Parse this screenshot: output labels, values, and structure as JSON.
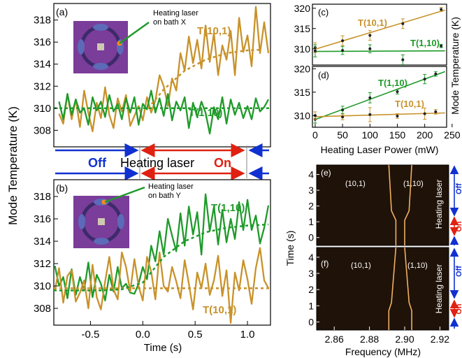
{
  "colors": {
    "mode_101": "#c8922a",
    "mode_110": "#1f9a2a",
    "off": "#1030d0",
    "on": "#e02010",
    "spectrum_bg": "#1f1208",
    "spectrum_line": "#f0b060",
    "bath_purple": "#7a3d9a"
  },
  "panel_a": {
    "label": "(a)",
    "annotation": "Heating laser on bath X",
    "annotation_lines": [
      "Heating laser",
      "on bath X"
    ],
    "series_101_label": "T(10,1)",
    "series_110_label": "T(1,10)",
    "yticks": [
      "308",
      "310",
      "312",
      "314",
      "316",
      "318"
    ]
  },
  "panel_b": {
    "label": "(b)",
    "annotation": "Heating laser on bath Y",
    "annotation_lines": [
      "Heating laser",
      "on bath Y"
    ],
    "series_110_label": "T(1,10)",
    "series_101_label": "T(10,1)",
    "yticks": [
      "308",
      "310",
      "312",
      "314",
      "316",
      "318"
    ]
  },
  "timeline": {
    "off_label": "Off",
    "heating_label": "Heating laser",
    "on_label": "On"
  },
  "left_axis": {
    "ylabel": "Mode Temperature (K)",
    "xlabel": "Time (s)",
    "xticks": [
      "-0.5",
      "0.0",
      "0.5",
      "1.0"
    ]
  },
  "panel_c": {
    "label": "(c)",
    "series_101_label": "T(10,1)",
    "series_110_label": "T(1,10)",
    "yticks": [
      "310",
      "315",
      "320"
    ]
  },
  "panel_d": {
    "label": "(d)",
    "series_110_label": "T(1,10)",
    "series_101_label": "T(10,1)",
    "yticks": [
      "310",
      "315",
      "320"
    ],
    "xticks": [
      "0",
      "50",
      "100",
      "150",
      "200",
      "250"
    ]
  },
  "right_top_axis": {
    "ylabel": "Mode Temperature (K)",
    "xlabel": "Heating Laser Power (mW)"
  },
  "panel_e": {
    "label": "(e)",
    "peak_left": "(10,1)",
    "peak_right": "(1,10)",
    "side_label": "Heating laser",
    "off_label": "Off",
    "on_label": "On",
    "yticks": [
      "0",
      "1",
      "2",
      "3",
      "4"
    ]
  },
  "panel_f": {
    "label": "(f)",
    "peak_left": "(10,1)",
    "peak_right": "(1,10)",
    "side_label": "Heating laser",
    "off_label": "Off",
    "on_label": "On",
    "yticks": [
      "0",
      "1",
      "2",
      "3",
      "4"
    ]
  },
  "right_bottom_axis": {
    "ylabel": "Time (s)",
    "xlabel": "Frequency (MHz)",
    "xticks": [
      "2.86",
      "2.88",
      "2.90",
      "2.92"
    ]
  },
  "chart_data": [
    {
      "id": "a",
      "type": "line",
      "xlim": [
        -0.85,
        1.22
      ],
      "ylim": [
        306.5,
        319.5
      ],
      "series": [
        {
          "name": "T(10,1)",
          "x": [
            -0.8,
            -0.76,
            -0.72,
            -0.68,
            -0.64,
            -0.6,
            -0.56,
            -0.52,
            -0.48,
            -0.44,
            -0.4,
            -0.36,
            -0.32,
            -0.28,
            -0.24,
            -0.2,
            -0.16,
            -0.12,
            -0.08,
            -0.04,
            0.0,
            0.04,
            0.08,
            0.12,
            0.16,
            0.2,
            0.24,
            0.28,
            0.32,
            0.36,
            0.4,
            0.44,
            0.48,
            0.52,
            0.56,
            0.6,
            0.64,
            0.68,
            0.72,
            0.76,
            0.8,
            0.84,
            0.88,
            0.92,
            0.96,
            1.0,
            1.04,
            1.08,
            1.12,
            1.16,
            1.2
          ],
          "values": [
            309.5,
            308.6,
            311.3,
            309.0,
            310.8,
            308.3,
            311.6,
            309.6,
            307.9,
            310.5,
            309.1,
            311.9,
            309.4,
            308.2,
            310.9,
            309.7,
            311.2,
            308.4,
            309.3,
            310.2,
            308.9,
            311.0,
            309.6,
            310.7,
            313.0,
            312.0,
            310.2,
            312.7,
            311.6,
            315.0,
            313.4,
            316.5,
            314.1,
            316.2,
            313.6,
            317.5,
            314.2,
            316.8,
            313.0,
            315.7,
            314.4,
            317.0,
            313.0,
            318.2,
            315.1,
            316.6,
            313.8,
            319.2,
            315.0,
            317.8,
            315.0
          ]
        },
        {
          "name": "T(1,10)",
          "x": [
            -0.8,
            -0.76,
            -0.72,
            -0.68,
            -0.64,
            -0.6,
            -0.56,
            -0.52,
            -0.48,
            -0.44,
            -0.4,
            -0.36,
            -0.32,
            -0.28,
            -0.24,
            -0.2,
            -0.16,
            -0.12,
            -0.08,
            -0.04,
            0.0,
            0.04,
            0.08,
            0.12,
            0.16,
            0.2,
            0.24,
            0.28,
            0.32,
            0.36,
            0.4,
            0.44,
            0.48,
            0.52,
            0.56,
            0.6,
            0.64,
            0.68,
            0.72,
            0.76,
            0.8,
            0.84,
            0.88,
            0.92,
            0.96,
            1.0,
            1.04,
            1.08,
            1.12,
            1.16,
            1.2
          ],
          "values": [
            310.6,
            309.0,
            311.3,
            309.4,
            310.8,
            309.6,
            310.0,
            308.5,
            311.0,
            309.8,
            310.6,
            309.2,
            311.2,
            309.7,
            310.4,
            309.0,
            310.9,
            309.6,
            311.0,
            308.5,
            310.4,
            309.9,
            311.6,
            309.6,
            310.9,
            309.3,
            311.3,
            308.9,
            310.6,
            309.8,
            311.0,
            308.2,
            310.5,
            309.2,
            310.6,
            309.6,
            307.7,
            310.1,
            309.0,
            311.0,
            308.6,
            310.8,
            309.4,
            310.5,
            309.1,
            310.2,
            309.0,
            310.9,
            309.7,
            310.1,
            310.8
          ]
        },
        {
          "name": "",
          "x": [
            -0.85,
            1.22
          ],
          "values": [
            310.0,
            310.0
          ]
        },
        {
          "name": "",
          "x": [
            0.05,
            0.2,
            0.4,
            0.6,
            0.8,
            1.0,
            1.12
          ],
          "values": [
            310.0,
            311.7,
            313.4,
            314.4,
            315.0,
            315.25,
            315.3
          ]
        }
      ]
    },
    {
      "id": "b",
      "type": "line",
      "xlim": [
        -0.85,
        1.22
      ],
      "ylim": [
        306.5,
        319.5
      ],
      "series": [
        {
          "name": "T(1,10)",
          "x": [
            -0.84,
            -0.8,
            -0.76,
            -0.72,
            -0.68,
            -0.64,
            -0.6,
            -0.56,
            -0.52,
            -0.48,
            -0.44,
            -0.4,
            -0.36,
            -0.32,
            -0.28,
            -0.24,
            -0.2,
            -0.16,
            -0.12,
            -0.08,
            -0.04,
            0.0,
            0.04,
            0.08,
            0.12,
            0.16,
            0.2,
            0.24,
            0.28,
            0.32,
            0.36,
            0.4,
            0.44,
            0.48,
            0.52,
            0.56,
            0.6,
            0.64,
            0.68,
            0.72,
            0.76,
            0.8,
            0.84,
            0.88,
            0.92,
            0.96,
            1.0,
            1.04,
            1.08,
            1.12,
            1.16,
            1.2
          ],
          "values": [
            311.8,
            310.0,
            310.8,
            308.9,
            311.5,
            309.2,
            310.8,
            309.6,
            312.1,
            309.0,
            311.0,
            310.2,
            308.7,
            311.0,
            309.5,
            311.7,
            309.8,
            310.2,
            309.4,
            309.3,
            310.2,
            311.7,
            310.6,
            313.6,
            312.2,
            314.9,
            312.8,
            316.0,
            314.5,
            313.1,
            316.5,
            313.6,
            317.1,
            314.6,
            316.6,
            312.8,
            318.2,
            314.9,
            317.1,
            313.7,
            316.8,
            313.9,
            316.0,
            314.2,
            317.5,
            315.0,
            317.7,
            315.0,
            316.3,
            313.8,
            315.2,
            317.2
          ]
        },
        {
          "name": "T(10,1)",
          "x": [
            -0.84,
            -0.8,
            -0.76,
            -0.72,
            -0.68,
            -0.64,
            -0.6,
            -0.56,
            -0.52,
            -0.48,
            -0.44,
            -0.4,
            -0.36,
            -0.32,
            -0.28,
            -0.24,
            -0.2,
            -0.16,
            -0.12,
            -0.08,
            -0.04,
            0.0,
            0.04,
            0.08,
            0.12,
            0.16,
            0.2,
            0.24,
            0.28,
            0.32,
            0.36,
            0.4,
            0.44,
            0.48,
            0.52,
            0.56,
            0.6,
            0.64,
            0.68,
            0.72,
            0.76,
            0.8,
            0.84,
            0.88,
            0.92,
            0.96,
            1.0,
            1.04,
            1.08,
            1.12,
            1.16,
            1.2
          ],
          "values": [
            309.6,
            311.6,
            308.5,
            310.9,
            311.4,
            308.6,
            309.4,
            310.5,
            308.0,
            311.9,
            309.0,
            307.9,
            310.4,
            312.6,
            309.7,
            308.8,
            313.0,
            311.7,
            309.5,
            312.4,
            310.0,
            308.7,
            312.6,
            311.3,
            308.8,
            313.0,
            310.0,
            309.5,
            311.7,
            310.4,
            308.9,
            312.3,
            310.2,
            307.9,
            311.2,
            309.8,
            312.0,
            309.2,
            310.5,
            312.7,
            309.1,
            311.4,
            306.7,
            311.2,
            309.6,
            312.3,
            310.6,
            308.4,
            311.6,
            313.4,
            310.5,
            309.8
          ]
        },
        {
          "name": "",
          "x": [
            -0.85,
            1.22
          ],
          "values": [
            309.8,
            309.8
          ]
        },
        {
          "name": "",
          "x": [
            -0.85,
            -0.4,
            -0.2,
            0.0,
            0.2,
            0.4,
            0.6,
            0.8,
            1.0,
            1.2
          ],
          "values": [
            309.6,
            309.6,
            309.7,
            310.3,
            312.6,
            314.0,
            314.8,
            315.2,
            315.4,
            315.5
          ]
        }
      ]
    },
    {
      "id": "c",
      "type": "scatter",
      "xlim": [
        -5,
        240
      ],
      "ylim": [
        306,
        321
      ],
      "series": [
        {
          "name": "T(10,1)",
          "x": [
            0,
            50,
            100,
            160,
            230
          ],
          "values": [
            310.3,
            312.0,
            313.3,
            316.2,
            319.7
          ],
          "errors": [
            1.2,
            1.2,
            1.2,
            1.2,
            0.5
          ]
        },
        {
          "name": "T(1,10)",
          "x": [
            0,
            50,
            100,
            160,
            230
          ],
          "values": [
            309.5,
            309.6,
            310.0,
            307.3,
            310.7
          ],
          "errors": [
            1.5,
            1.0,
            1.0,
            1.2,
            0.4
          ]
        }
      ]
    },
    {
      "id": "d",
      "type": "scatter",
      "xlim": [
        -5,
        240
      ],
      "ylim": [
        307.5,
        320.5
      ],
      "series": [
        {
          "name": "T(1,10)",
          "x": [
            0,
            50,
            100,
            150,
            200,
            220
          ],
          "values": [
            309.2,
            311.2,
            313.8,
            315.1,
            317.8,
            318.9
          ],
          "errors": [
            0.8,
            0.8,
            1.1,
            0.5,
            1.0,
            0.5
          ]
        },
        {
          "name": "T(10,1)",
          "x": [
            0,
            50,
            100,
            150,
            200,
            220
          ],
          "values": [
            310.0,
            309.7,
            310.2,
            309.9,
            310.4,
            310.8
          ],
          "errors": [
            0.8,
            0.6,
            1.5,
            0.5,
            1.2,
            0.5
          ]
        }
      ]
    },
    {
      "id": "e",
      "type": "heatmap",
      "xlim": [
        2.85,
        2.925
      ],
      "ylim": [
        -0.5,
        4.6
      ],
      "series": [
        {
          "name": "(10,1)",
          "x": [
            2.895,
            2.895,
            2.8925,
            2.891
          ],
          "values": [
            -0.5,
            1.1,
            1.7,
            4.6
          ]
        },
        {
          "name": "(1,10)",
          "x": [
            2.9,
            2.9,
            2.9025,
            2.904
          ],
          "values": [
            -0.5,
            1.1,
            1.7,
            4.6
          ]
        }
      ]
    },
    {
      "id": "f",
      "type": "heatmap",
      "xlim": [
        2.85,
        2.925
      ],
      "ylim": [
        -0.5,
        4.6
      ],
      "series": [
        {
          "name": "(10,1)",
          "x": [
            2.891,
            2.891,
            2.8925,
            2.895
          ],
          "values": [
            -0.5,
            0.7,
            1.2,
            4.6
          ]
        },
        {
          "name": "(1,10)",
          "x": [
            2.904,
            2.904,
            2.9025,
            2.9
          ],
          "values": [
            -0.5,
            0.7,
            1.2,
            4.6
          ]
        }
      ]
    }
  ]
}
